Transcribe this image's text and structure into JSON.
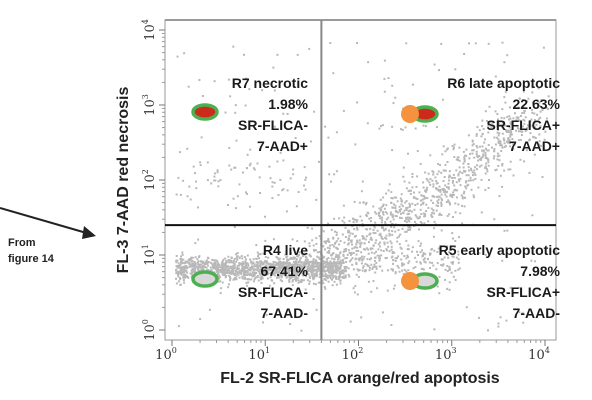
{
  "chart_data": {
    "type": "scatter",
    "plot_kind": "flow cytometry dot plot (log-log)",
    "x_scale": "log",
    "y_scale": "log",
    "xlim": [
      1,
      10000
    ],
    "ylim": [
      1,
      10000
    ],
    "xlabel": "FL-2 SR-FLICA orange/red apoptosis",
    "ylabel": "FL-3 7-AAD red necrosis",
    "x_ticks": [
      {
        "base": "10",
        "exp": "0",
        "value": 1
      },
      {
        "base": "10",
        "exp": "1",
        "value": 10
      },
      {
        "base": "10",
        "exp": "2",
        "value": 100
      },
      {
        "base": "10",
        "exp": "3",
        "value": 1000
      },
      {
        "base": "10",
        "exp": "4",
        "value": 10000
      }
    ],
    "y_ticks": [
      {
        "base": "10",
        "exp": "0",
        "value": 1
      },
      {
        "base": "10",
        "exp": "1",
        "value": 10
      },
      {
        "base": "10",
        "exp": "2",
        "value": 100
      },
      {
        "base": "10",
        "exp": "3",
        "value": 1000
      },
      {
        "base": "10",
        "exp": "4",
        "value": 10000
      }
    ],
    "gates": {
      "x_threshold": 40,
      "y_threshold": 25
    },
    "point_color": "#b8b8b8",
    "quadrants": [
      {
        "region": "R7",
        "name": "necrotic",
        "lines": [
          "R7 necrotic",
          "1.98%",
          "SR-FLICA-",
          "7-AAD+"
        ],
        "percent": 1.98,
        "position": "top-left",
        "cell_icon": {
          "outer": "#4caf50",
          "inner": "#cc2a1a",
          "label_dot": null
        }
      },
      {
        "region": "R6",
        "name": "late apoptotic",
        "lines": [
          "R6 late apoptotic",
          "22.63%",
          "SR-FLICA+",
          "7-AAD+"
        ],
        "percent": 22.63,
        "position": "top-right",
        "cell_icon": {
          "outer": "#4caf50",
          "inner": "#cc2a1a",
          "label_dot": "#f5923e"
        }
      },
      {
        "region": "R4",
        "name": "live",
        "lines": [
          "R4 live",
          "67.41%",
          "SR-FLICA-",
          "7-AAD-"
        ],
        "percent": 67.41,
        "position": "bottom-left",
        "cell_icon": {
          "outer": "#4caf50",
          "inner": "#d8d8d8",
          "label_dot": null
        }
      },
      {
        "region": "R5",
        "name": "early apoptotic",
        "lines": [
          "R5 early apoptotic",
          "7.98%",
          "SR-FLICA+",
          "7-AAD-"
        ],
        "percent": 7.98,
        "position": "bottom-right",
        "cell_icon": {
          "outer": "#4caf50",
          "inner": "#d8d8d8",
          "label_dot": "#f5923e"
        }
      }
    ],
    "grid": false,
    "legend": "none"
  },
  "annotation": {
    "lines": [
      "From",
      "figure 14"
    ],
    "arrow": "right",
    "points_to": "y axis gate line"
  },
  "colors": {
    "frame": "#9a9a9a",
    "gate_horizontal": "#111111",
    "gate_vertical": "#888888",
    "points": "#b8b8b8",
    "cell_ring": "#4caf50",
    "necrotic_core": "#cc2a1a",
    "live_core": "#d8d8d8",
    "flica_label": "#f5923e"
  }
}
